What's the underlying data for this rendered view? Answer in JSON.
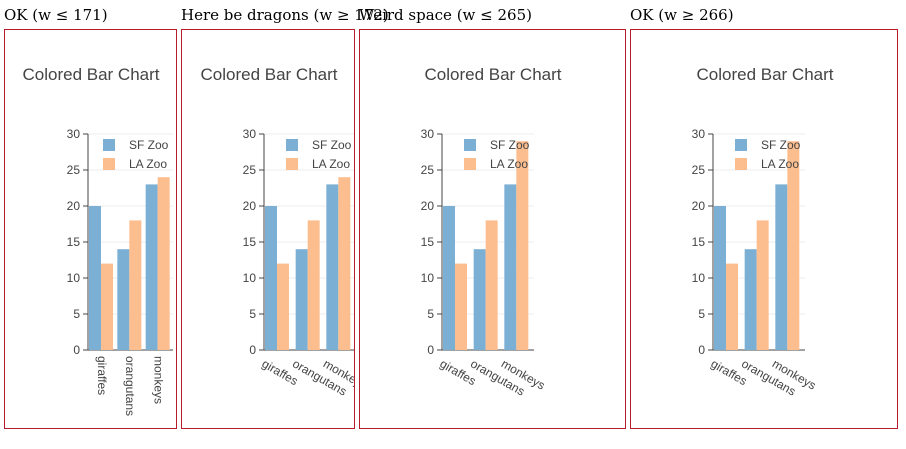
{
  "panels": [
    {
      "label": "OK (w ≤ 171)"
    },
    {
      "label": "Here be dragons (w ≥ 172)"
    },
    {
      "label": "Weird space (w ≤ 265)"
    },
    {
      "label": "OK (w ≥ 266)"
    }
  ],
  "colors": {
    "sf": "#7bafd3",
    "la": "#fdbe8f",
    "frame": "#b71c2c"
  },
  "chart_data": [
    {
      "type": "bar",
      "title": "Colored Bar Chart",
      "categories": [
        "giraffes",
        "orangutans",
        "monkeys"
      ],
      "series": [
        {
          "name": "SF Zoo",
          "values": [
            20,
            14,
            23
          ]
        },
        {
          "name": "LA Zoo",
          "values": [
            12,
            18,
            24
          ]
        }
      ],
      "yticks": [
        0,
        5,
        10,
        15,
        20,
        25,
        30
      ],
      "ylim": [
        0,
        30
      ],
      "legend": "top-right",
      "xtick_angle": 90
    },
    {
      "type": "bar",
      "title": "Colored Bar Chart",
      "categories": [
        "giraffes",
        "orangutans",
        "monkeys"
      ],
      "series": [
        {
          "name": "SF Zoo",
          "values": [
            20,
            14,
            23
          ]
        },
        {
          "name": "LA Zoo",
          "values": [
            12,
            18,
            24
          ]
        }
      ],
      "yticks": [
        0,
        5,
        10,
        15,
        20,
        25,
        30
      ],
      "ylim": [
        0,
        30
      ],
      "legend": "top-right",
      "xtick_angle": 30
    },
    {
      "type": "bar",
      "title": "Colored Bar Chart",
      "categories": [
        "giraffes",
        "orangutans",
        "monkeys"
      ],
      "series": [
        {
          "name": "SF Zoo",
          "values": [
            20,
            14,
            23
          ]
        },
        {
          "name": "LA Zoo",
          "values": [
            12,
            18,
            29
          ]
        }
      ],
      "yticks": [
        0,
        5,
        10,
        15,
        20,
        25,
        30
      ],
      "ylim": [
        0,
        30
      ],
      "legend": "top-right",
      "xtick_angle": 30
    },
    {
      "type": "bar",
      "title": "Colored Bar Chart",
      "categories": [
        "giraffes",
        "orangutans",
        "monkeys"
      ],
      "series": [
        {
          "name": "SF Zoo",
          "values": [
            20,
            14,
            23
          ]
        },
        {
          "name": "LA Zoo",
          "values": [
            12,
            18,
            29
          ]
        }
      ],
      "yticks": [
        0,
        5,
        10,
        15,
        20,
        25,
        30
      ],
      "ylim": [
        0,
        30
      ],
      "legend": "top-right",
      "xtick_angle": 30
    }
  ]
}
